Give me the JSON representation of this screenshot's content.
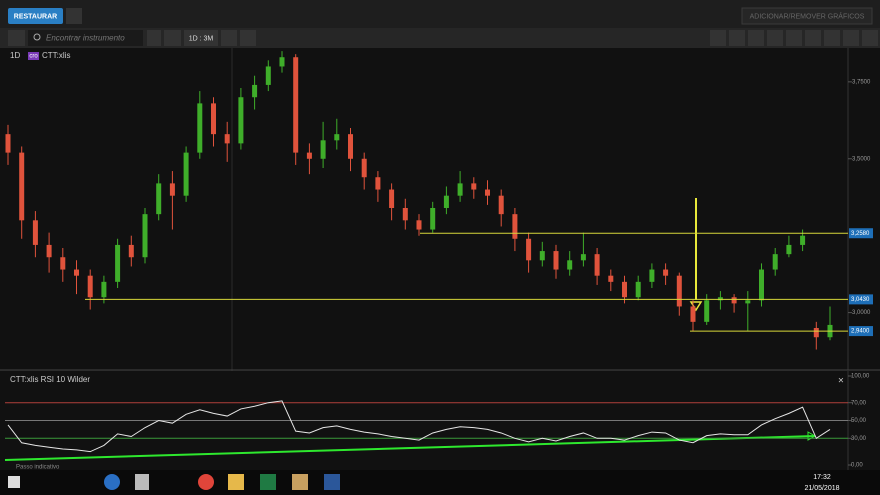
{
  "header": {
    "restore_button": "RESTAURAR",
    "add_remove_button": "ADICIONAR/REMOVER GRÁFICOS",
    "search_placeholder": "Encontrar instrumento",
    "period_button": "1D : 3M"
  },
  "chart_data": [
    {
      "type": "candlestick",
      "timeframe": "1D",
      "badge": "cro",
      "title": "CTT:xlis",
      "open": [
        3.58,
        3.52,
        3.3,
        3.22,
        3.18,
        3.14,
        3.12,
        3.05,
        3.1,
        3.22,
        3.18,
        3.32,
        3.42,
        3.38,
        3.52,
        3.68,
        3.58,
        3.55,
        3.7,
        3.74,
        3.8,
        3.83,
        3.52,
        3.5,
        3.56,
        3.58,
        3.5,
        3.44,
        3.4,
        3.34,
        3.3,
        3.27,
        3.34,
        3.38,
        3.42,
        3.4,
        3.38,
        3.32,
        3.24,
        3.17,
        3.2,
        3.14,
        3.17,
        3.19,
        3.12,
        3.1,
        3.05,
        3.1,
        3.14,
        3.12,
        3.02,
        2.97,
        3.04,
        3.05,
        3.03,
        3.04,
        3.14,
        3.19,
        3.22,
        2.95,
        2.92
      ],
      "high": [
        3.61,
        3.54,
        3.33,
        3.26,
        3.21,
        3.17,
        3.14,
        3.12,
        3.24,
        3.25,
        3.34,
        3.45,
        3.46,
        3.54,
        3.72,
        3.7,
        3.62,
        3.73,
        3.77,
        3.82,
        3.85,
        3.84,
        3.55,
        3.62,
        3.63,
        3.6,
        3.52,
        3.46,
        3.42,
        3.37,
        3.32,
        3.36,
        3.41,
        3.46,
        3.44,
        3.43,
        3.4,
        3.34,
        3.26,
        3.23,
        3.22,
        3.2,
        3.26,
        3.21,
        3.14,
        3.12,
        3.12,
        3.16,
        3.16,
        3.13,
        3.04,
        3.06,
        3.07,
        3.06,
        3.07,
        3.16,
        3.21,
        3.25,
        3.27,
        2.97,
        3.02
      ],
      "low": [
        3.48,
        3.24,
        3.18,
        3.13,
        3.1,
        3.06,
        3.01,
        3.03,
        3.08,
        3.15,
        3.16,
        3.3,
        3.27,
        3.36,
        3.5,
        3.54,
        3.49,
        3.53,
        3.66,
        3.72,
        3.78,
        3.48,
        3.45,
        3.47,
        3.53,
        3.46,
        3.4,
        3.36,
        3.3,
        3.27,
        3.25,
        3.26,
        3.32,
        3.36,
        3.37,
        3.35,
        3.28,
        3.2,
        3.13,
        3.15,
        3.11,
        3.12,
        3.15,
        3.09,
        3.07,
        3.03,
        3.04,
        3.08,
        3.09,
        2.99,
        2.94,
        2.96,
        3.01,
        3.0,
        2.94,
        3.02,
        3.12,
        3.18,
        3.2,
        2.88,
        2.91
      ],
      "close": [
        3.52,
        3.3,
        3.22,
        3.18,
        3.14,
        3.12,
        3.05,
        3.1,
        3.22,
        3.18,
        3.32,
        3.42,
        3.38,
        3.52,
        3.68,
        3.58,
        3.55,
        3.7,
        3.74,
        3.8,
        3.83,
        3.52,
        3.5,
        3.56,
        3.58,
        3.5,
        3.44,
        3.4,
        3.34,
        3.3,
        3.27,
        3.34,
        3.38,
        3.42,
        3.4,
        3.38,
        3.32,
        3.24,
        3.17,
        3.2,
        3.14,
        3.17,
        3.19,
        3.12,
        3.1,
        3.05,
        3.1,
        3.14,
        3.12,
        3.02,
        2.97,
        3.04,
        3.05,
        3.03,
        3.04,
        3.14,
        3.19,
        3.22,
        3.25,
        2.92,
        2.96
      ],
      "up_color": "#3fae2a",
      "down_color": "#e0533c",
      "ylim": [
        2.82,
        3.86
      ],
      "yticks": [
        {
          "value": 3.0,
          "label": "3,0000"
        },
        {
          "value": 3.5,
          "label": "3,5000"
        },
        {
          "value": 3.75,
          "label": "3,7500"
        }
      ],
      "levels": [
        {
          "value": 3.258,
          "label": "3,2580"
        },
        {
          "value": 3.043,
          "label": "3,0430"
        },
        {
          "value": 2.94,
          "label": "2,9400"
        }
      ],
      "level_color": "#d8d83a"
    },
    {
      "type": "line",
      "title": "CTT:xlis  RSI 10 Wilder",
      "footnote": "Passo indicativo",
      "color": "#e6e6e6",
      "values": [
        45,
        25,
        22,
        20,
        18,
        17,
        15,
        22,
        35,
        32,
        42,
        50,
        47,
        57,
        62,
        58,
        55,
        63,
        66,
        70,
        72,
        38,
        36,
        42,
        44,
        40,
        37,
        35,
        32,
        30,
        28,
        36,
        40,
        43,
        42,
        40,
        36,
        30,
        26,
        30,
        27,
        32,
        36,
        30,
        30,
        28,
        33,
        37,
        36,
        28,
        25,
        33,
        35,
        34,
        34,
        45,
        52,
        58,
        65,
        30,
        40
      ],
      "ylim": [
        0,
        100
      ],
      "yticks": [
        {
          "value": 0,
          "label": "0,00"
        },
        {
          "value": 30,
          "label": "30,00"
        },
        {
          "value": 50,
          "label": "50,00"
        },
        {
          "value": 70,
          "label": "70,00"
        },
        {
          "value": 100,
          "label": "100,00"
        }
      ],
      "levels": [
        {
          "value": 70,
          "color": "#b0403a"
        },
        {
          "value": 50,
          "color": "#777777"
        },
        {
          "value": 30,
          "color": "#3a9a3a"
        }
      ]
    }
  ],
  "taskbar": {
    "time": "17:32",
    "date": "21/05/2018"
  }
}
